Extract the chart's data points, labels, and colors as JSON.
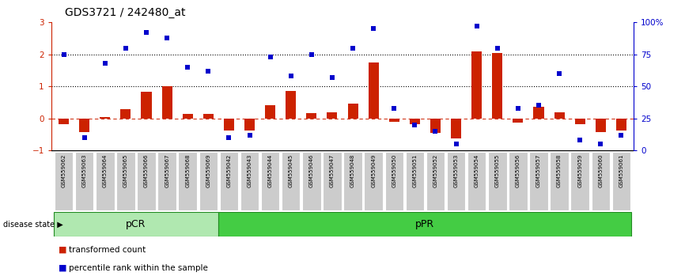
{
  "title": "GDS3721 / 242480_at",
  "samples": [
    "GSM559062",
    "GSM559063",
    "GSM559064",
    "GSM559065",
    "GSM559066",
    "GSM559067",
    "GSM559068",
    "GSM559069",
    "GSM559042",
    "GSM559043",
    "GSM559044",
    "GSM559045",
    "GSM559046",
    "GSM559047",
    "GSM559048",
    "GSM559049",
    "GSM559050",
    "GSM559051",
    "GSM559052",
    "GSM559053",
    "GSM559054",
    "GSM559055",
    "GSM559056",
    "GSM559057",
    "GSM559058",
    "GSM559059",
    "GSM559060",
    "GSM559061"
  ],
  "transformed_count": [
    -0.18,
    -0.42,
    0.05,
    0.28,
    0.82,
    1.0,
    0.15,
    0.15,
    -0.38,
    -0.38,
    0.42,
    0.85,
    0.17,
    0.2,
    0.47,
    1.75,
    -0.1,
    -0.18,
    -0.45,
    -0.62,
    2.1,
    2.05,
    -0.12,
    0.35,
    0.18,
    -0.18,
    -0.42,
    -0.38
  ],
  "percentile_rank": [
    75,
    10,
    68,
    80,
    92,
    88,
    65,
    62,
    10,
    12,
    73,
    58,
    75,
    57,
    80,
    95,
    33,
    20,
    15,
    5,
    97,
    80,
    33,
    35,
    60,
    8,
    5,
    12
  ],
  "group_pCR_count": 8,
  "bar_color": "#cc2200",
  "dot_color": "#0000cc",
  "pCR_color": "#b0e8b0",
  "pPR_color": "#44cc44",
  "ylim_left": [
    -1.0,
    3.0
  ],
  "ylim_right": [
    0,
    100
  ],
  "yticks_left": [
    -1,
    0,
    1,
    2,
    3
  ],
  "yticks_right": [
    0,
    25,
    50,
    75,
    100
  ],
  "ytick_right_labels": [
    "0",
    "25",
    "50",
    "75",
    "100%"
  ]
}
